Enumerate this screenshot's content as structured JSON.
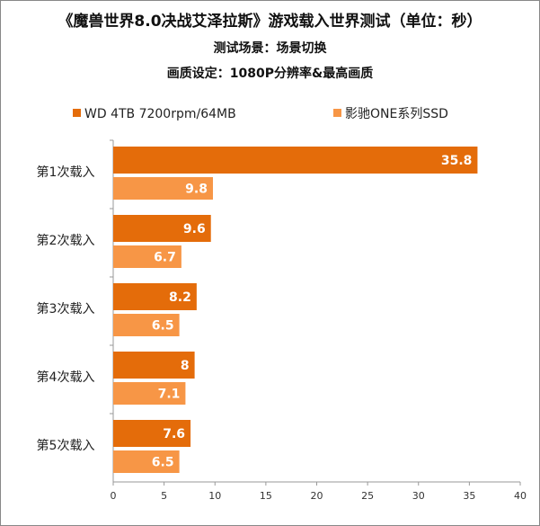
{
  "chart_data": {
    "type": "bar",
    "orientation": "horizontal",
    "title": "《魔兽世界8.0决战艾泽拉斯》游戏载入世界测试（单位：秒）",
    "subtitles": [
      "测试场景：场景切换",
      "画质设定：1080P分辨率&最高画质"
    ],
    "categories": [
      "第1次载入",
      "第2次载入",
      "第3次载入",
      "第4次载入",
      "第5次载入"
    ],
    "series": [
      {
        "name": "WD 4TB 7200rpm/64MB",
        "values": [
          35.8,
          9.6,
          8.2,
          8,
          7.6
        ],
        "color": "#E46C0A"
      },
      {
        "name": "影驰ONE系列SSD",
        "values": [
          9.8,
          6.7,
          6.5,
          7.1,
          6.5
        ],
        "color": "#F79646"
      }
    ],
    "xlim": [
      0,
      40
    ],
    "xticks": [
      0,
      5,
      10,
      15,
      20,
      25,
      30,
      35,
      40
    ],
    "grid": false,
    "legend": "top",
    "data_labels": true
  }
}
